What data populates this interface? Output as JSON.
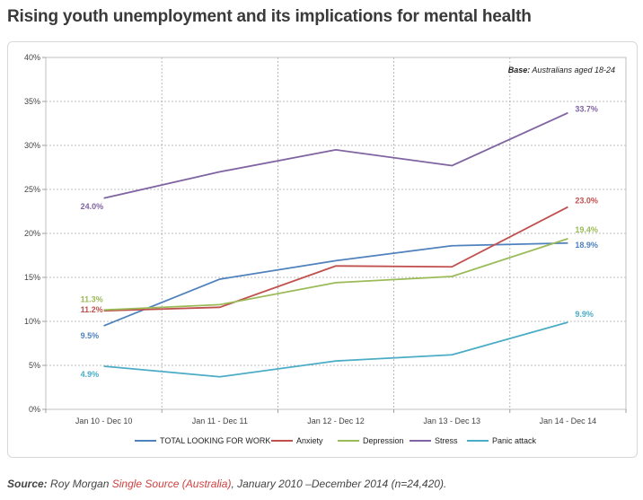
{
  "title": "Rising youth unemployment and its implications for mental health",
  "source": {
    "label": "Source:",
    "prefix": " Roy Morgan ",
    "link_text": "Single Source (Australia)",
    "suffix": ", January 2010 –December 2014 (n=24,420)."
  },
  "chart_data": {
    "type": "line",
    "title": "Rising youth unemployment and its implications for mental health",
    "note_label": "Base:",
    "note_text": " Australians aged 18-24",
    "categories": [
      "Jan 10 - Dec 10",
      "Jan 11 - Dec 11",
      "Jan 12 - Dec 12",
      "Jan 13 - Dec 13",
      "Jan 14 - Dec 14"
    ],
    "ylim": [
      0,
      40
    ],
    "yticks": [
      "0%",
      "5%",
      "10%",
      "15%",
      "20%",
      "25%",
      "30%",
      "35%",
      "40%"
    ],
    "grid": true,
    "legend_position": "bottom",
    "series": [
      {
        "name": "TOTAL LOOKING FOR WORK",
        "color": "#4f81bd",
        "values": [
          9.5,
          14.8,
          16.9,
          18.6,
          18.9
        ],
        "first_label": "9.5%",
        "last_label": "18.9%"
      },
      {
        "name": "Anxiety",
        "color": "#c0504d",
        "values": [
          11.2,
          11.6,
          16.3,
          16.2,
          23.0
        ],
        "first_label": "11.2%",
        "last_label": "23.0%"
      },
      {
        "name": "Depression",
        "color": "#9bbb59",
        "values": [
          11.3,
          11.9,
          14.4,
          15.1,
          19.4
        ],
        "first_label": "11.3%",
        "last_label": "19.4%"
      },
      {
        "name": "Stress",
        "color": "#8064a2",
        "values": [
          24.0,
          27.0,
          29.5,
          27.7,
          33.7
        ],
        "first_label": "24.0%",
        "last_label": "33.7%"
      },
      {
        "name": "Panic attack",
        "color": "#4bacc6",
        "values": [
          4.9,
          3.7,
          5.5,
          6.2,
          9.9
        ],
        "first_label": "4.9%",
        "last_label": "9.9%"
      }
    ]
  }
}
